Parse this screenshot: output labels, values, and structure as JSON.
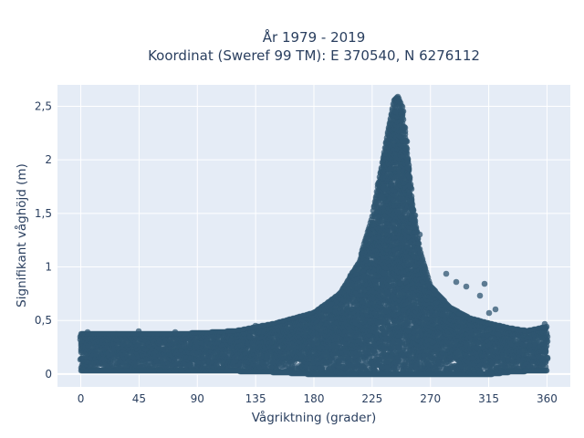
{
  "chart_data": {
    "type": "scatter",
    "title_line1": "År 1979 - 2019",
    "title_line2": "Koordinat (Sweref 99 TM): E 370540, N 6276112",
    "xlabel": "Vågriktning (grader)",
    "ylabel": "Signifikant våghöjd (m)",
    "xlim": [
      -18,
      378
    ],
    "ylim": [
      -0.12,
      2.7
    ],
    "x_ticks": [
      0,
      45,
      90,
      135,
      180,
      225,
      270,
      315,
      360
    ],
    "x_tick_labels": [
      "0",
      "45",
      "90",
      "135",
      "180",
      "225",
      "270",
      "315",
      "360"
    ],
    "y_ticks": [
      0,
      0.5,
      1,
      1.5,
      2,
      2.5
    ],
    "y_tick_labels": [
      "0",
      "0,5",
      "1",
      "1,5",
      "2",
      "2,5"
    ],
    "grid": true,
    "legend": "none",
    "marker_color": "#2f5670",
    "plot_background": "#e5ecf6",
    "envelope": {
      "direction": [
        0,
        30,
        60,
        90,
        120,
        150,
        180,
        200,
        215,
        225,
        232,
        238,
        242,
        245,
        248,
        252,
        256,
        262,
        270,
        285,
        300,
        315,
        330,
        345,
        360
      ],
      "min_height": [
        0.03,
        0.03,
        0.03,
        0.03,
        0.03,
        0.02,
        0.0,
        0.0,
        0.0,
        0.0,
        0.0,
        0.0,
        0.0,
        0.0,
        0.0,
        0.0,
        0.0,
        0.0,
        0.0,
        0.0,
        0.0,
        0.0,
        0.02,
        0.03,
        0.03
      ],
      "max_height": [
        0.37,
        0.37,
        0.37,
        0.38,
        0.4,
        0.47,
        0.57,
        0.75,
        1.05,
        1.45,
        1.9,
        2.3,
        2.55,
        2.59,
        2.5,
        2.1,
        1.6,
        1.15,
        0.82,
        0.62,
        0.52,
        0.47,
        0.43,
        0.4,
        0.44
      ]
    },
    "outliers": [
      {
        "x": 229,
        "y": 1.77
      },
      {
        "x": 232,
        "y": 1.65
      },
      {
        "x": 258,
        "y": 1.48
      },
      {
        "x": 262,
        "y": 1.3
      },
      {
        "x": 282,
        "y": 0.94
      },
      {
        "x": 290,
        "y": 0.86
      },
      {
        "x": 298,
        "y": 0.82
      },
      {
        "x": 308,
        "y": 0.73
      },
      {
        "x": 312,
        "y": 0.84
      },
      {
        "x": 315,
        "y": 0.57
      },
      {
        "x": 320,
        "y": 0.6
      },
      {
        "x": 150,
        "y": 0.46
      },
      {
        "x": 135,
        "y": 0.45
      },
      {
        "x": 5,
        "y": 0.39
      },
      {
        "x": 45,
        "y": 0.4
      },
      {
        "x": 73,
        "y": 0.39
      },
      {
        "x": 358,
        "y": 0.47
      }
    ]
  }
}
